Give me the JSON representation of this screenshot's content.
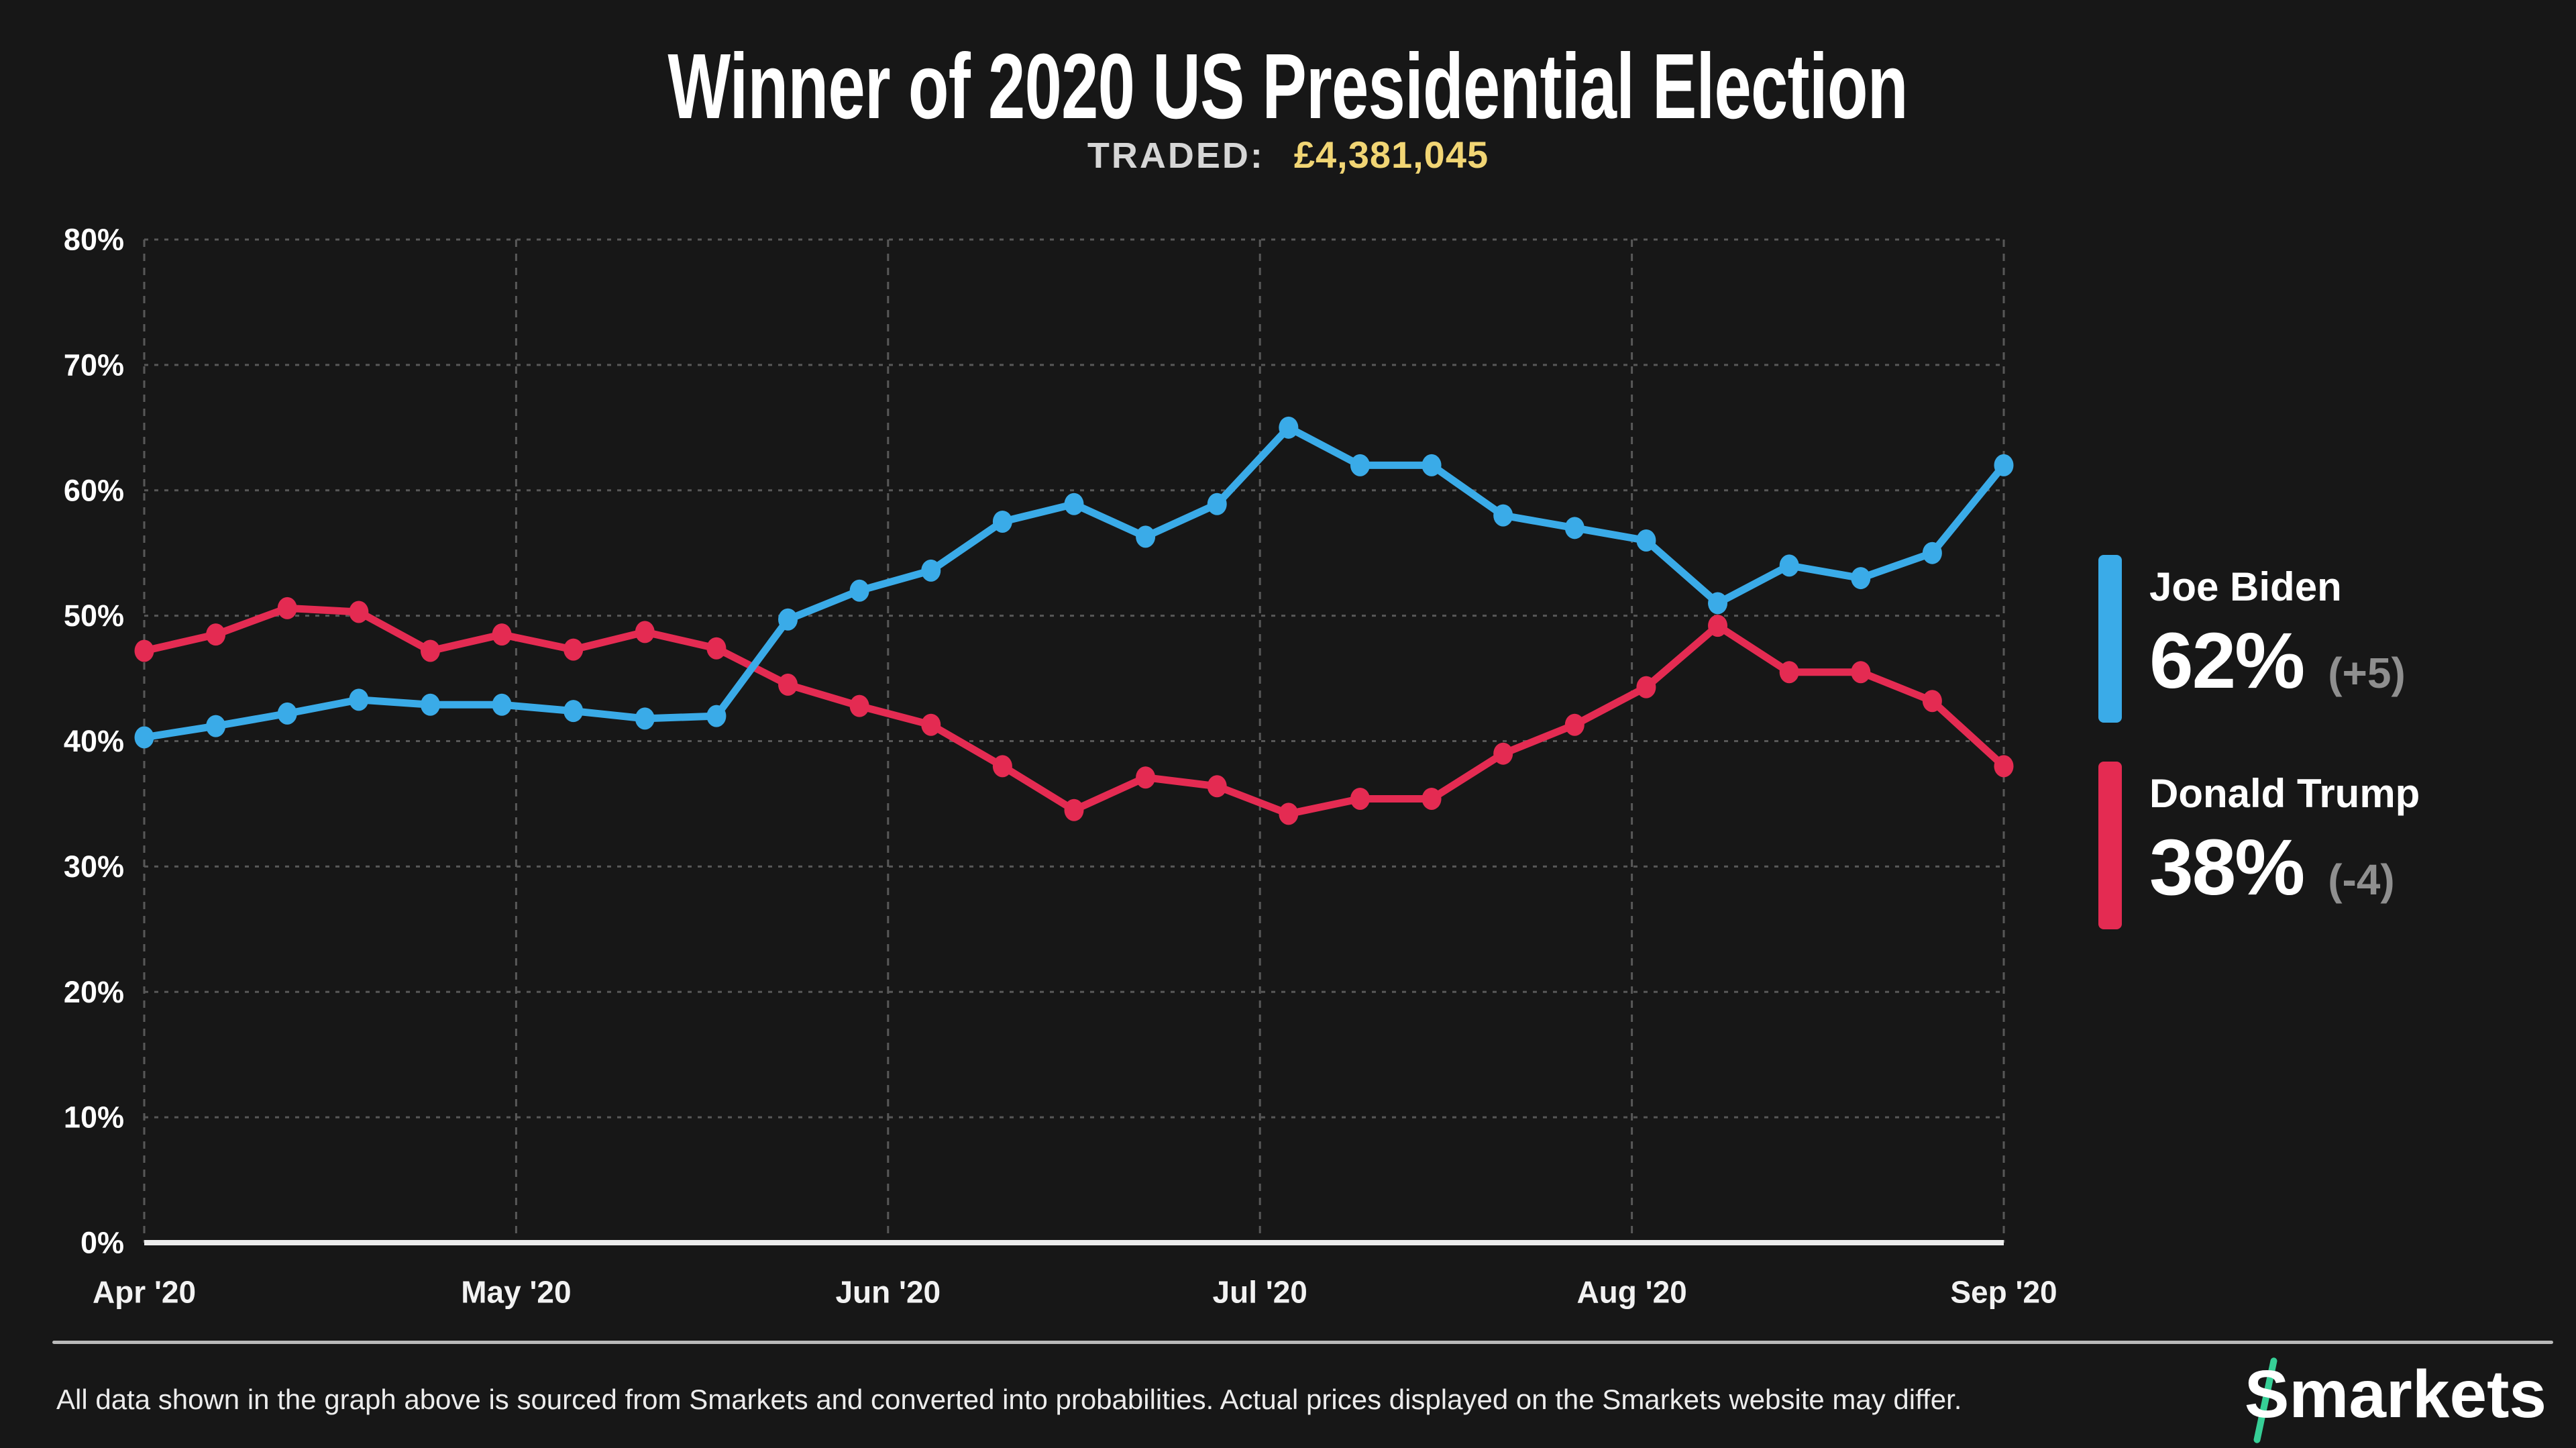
{
  "header": {
    "title": "Winner of 2020 US Presidential Election",
    "traded_label": "TRADED:",
    "traded_value": "£4,381,045"
  },
  "chart_data": {
    "type": "line",
    "title": "Winner of 2020 US Presidential Election",
    "traded": "£4,381,045",
    "x_tick_labels": [
      "Apr '20",
      "May '20",
      "Jun '20",
      "Jul '20",
      "Aug '20",
      "Sep '20"
    ],
    "y_tick_labels": [
      "0%",
      "10%",
      "20%",
      "30%",
      "40%",
      "50%",
      "60%",
      "70%",
      "80%"
    ],
    "y_tick_step": 10,
    "ylim": [
      0,
      80
    ],
    "grid": true,
    "legend_position": "right",
    "n_points": 27,
    "x_range_note": "27 evenly spaced points from Apr '20 to Sep '20",
    "series": [
      {
        "name": "Joe Biden",
        "color": "#3aabe8",
        "current_value": "62%",
        "change": "(+5)",
        "values": [
          40.3,
          41.2,
          42.2,
          43.3,
          42.9,
          42.9,
          42.4,
          41.8,
          42.0,
          49.7,
          52.0,
          53.6,
          57.5,
          58.9,
          56.3,
          58.9,
          65.0,
          62.0,
          62.0,
          58.0,
          57.0,
          56.0,
          51.0,
          54.0,
          53.0,
          55.0,
          62.0
        ]
      },
      {
        "name": "Donald Trump",
        "color": "#e42b52",
        "current_value": "38%",
        "change": "(-4)",
        "values": [
          47.2,
          48.5,
          50.6,
          50.3,
          47.2,
          48.5,
          47.3,
          48.7,
          47.4,
          44.5,
          42.8,
          41.3,
          38.0,
          34.5,
          37.1,
          36.4,
          34.2,
          35.4,
          35.4,
          39.0,
          41.3,
          44.3,
          49.2,
          45.5,
          45.5,
          43.2,
          38.0
        ]
      }
    ]
  },
  "footer": {
    "note": "All data shown in the graph above is sourced from Smarkets and converted into probabilities. Actual prices displayed on the Smarkets website may differ.",
    "logo_text": "Smarkets"
  },
  "colors": {
    "background": "#171717",
    "biden_blue": "#3aabe8",
    "trump_red": "#e42b52",
    "traded_gold": "#f1d574",
    "change_gray": "#8f8f8f",
    "grid_gray": "#585858",
    "axis_white": "#ededed",
    "tick_label": "#f2f2f2",
    "logo_green": "#36cf96"
  }
}
